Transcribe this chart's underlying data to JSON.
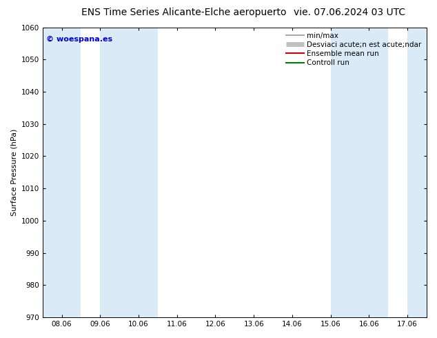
{
  "title_left": "ENS Time Series Alicante-Elche aeropuerto",
  "title_right": "vie. 07.06.2024 03 UTC",
  "ylabel": "Surface Pressure (hPa)",
  "ylim": [
    970,
    1060
  ],
  "yticks": [
    970,
    980,
    990,
    1000,
    1010,
    1020,
    1030,
    1040,
    1050,
    1060
  ],
  "xtick_labels": [
    "08.06",
    "09.06",
    "10.06",
    "11.06",
    "12.06",
    "13.06",
    "14.06",
    "15.06",
    "16.06",
    "17.06"
  ],
  "xlim": [
    -0.5,
    9.5
  ],
  "xtick_positions": [
    0,
    1,
    2,
    3,
    4,
    5,
    6,
    7,
    8,
    9
  ],
  "shaded_bands": [
    {
      "xmin": -0.5,
      "xmax": 0.5
    },
    {
      "xmin": 1.0,
      "xmax": 2.5
    },
    {
      "xmin": 7.0,
      "xmax": 8.5
    },
    {
      "xmin": 9.0,
      "xmax": 9.5
    }
  ],
  "shaded_color": "#daeaf7",
  "background_color": "#ffffff",
  "watermark_text": "© woespana.es",
  "watermark_color": "#0000cc",
  "legend_entries": [
    {
      "label": "min/max",
      "color": "#aaaaaa",
      "lw": 1.5
    },
    {
      "label": "Desviaci acute;n est acute;ndar",
      "color": "#c0c0c0",
      "lw": 5
    },
    {
      "label": "Ensemble mean run",
      "color": "#cc0000",
      "lw": 1.5
    },
    {
      "label": "Controll run",
      "color": "#008000",
      "lw": 1.5
    }
  ],
  "title_fontsize": 10,
  "tick_fontsize": 7.5,
  "ylabel_fontsize": 8,
  "legend_fontsize": 7.5,
  "fig_width": 6.34,
  "fig_height": 4.9,
  "dpi": 100
}
